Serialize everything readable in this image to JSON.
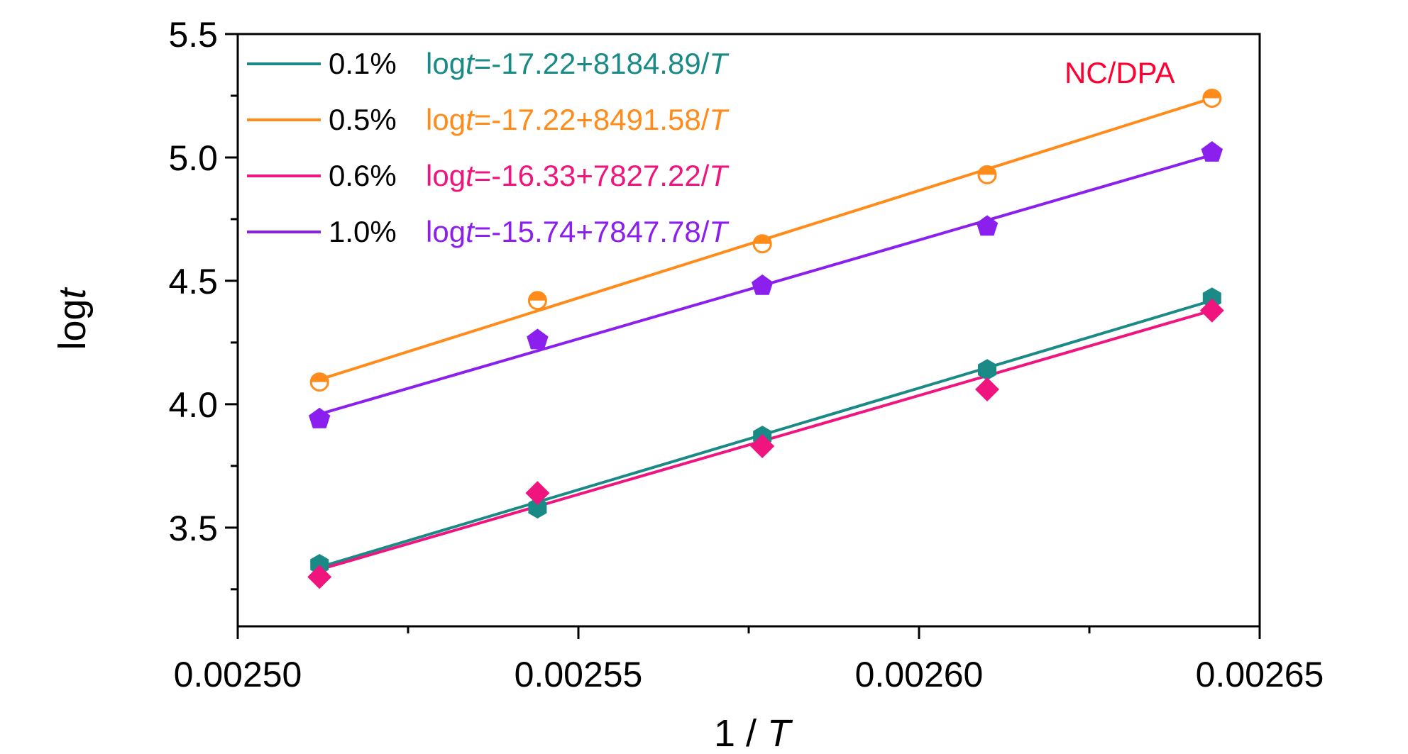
{
  "chart_data": {
    "type": "scatter",
    "xlabel": "1 / T",
    "ylabel": "logt",
    "xlim": [
      0.0025,
      0.00265
    ],
    "ylim": [
      3.1,
      5.5
    ],
    "x_ticks": [
      0.0025,
      0.00255,
      0.0026,
      0.00265
    ],
    "x_tick_labels": [
      "0.00250",
      "0.00255",
      "0.00260",
      "0.00265"
    ],
    "y_ticks": [
      3.5,
      4.0,
      4.5,
      5.0,
      5.5
    ],
    "y_tick_labels": [
      "3.5",
      "4.0",
      "4.5",
      "5.0",
      "5.5"
    ],
    "annotation": {
      "text": "NC/DPA",
      "color": "#ff0033"
    },
    "series": [
      {
        "name": "0.1%",
        "equation": "logt=-17.22+8184.89/T",
        "color": "#1a8a86",
        "marker": "hexagon",
        "x": [
          0.002512,
          0.002544,
          0.002577,
          0.00261,
          0.002643
        ],
        "y": [
          3.35,
          3.58,
          3.87,
          4.14,
          4.43
        ],
        "fit": [
          [
            0.002512,
            3.34
          ],
          [
            0.002643,
            4.42
          ]
        ]
      },
      {
        "name": "0.5%",
        "equation": "logt=-17.22+8491.58/T",
        "color": "#ff8c1a",
        "marker": "half-circle",
        "x": [
          0.002512,
          0.002544,
          0.002577,
          0.00261,
          0.002643
        ],
        "y": [
          4.09,
          4.42,
          4.65,
          4.93,
          5.24
        ],
        "fit": [
          [
            0.002512,
            4.1
          ],
          [
            0.002643,
            5.24
          ]
        ]
      },
      {
        "name": "0.6%",
        "equation": "logt=-16.33+7827.22/T",
        "color": "#f0147e",
        "marker": "diamond",
        "x": [
          0.002512,
          0.002544,
          0.002577,
          0.00261,
          0.002643
        ],
        "y": [
          3.3,
          3.64,
          3.83,
          4.06,
          4.38
        ],
        "fit": [
          [
            0.002512,
            3.33
          ],
          [
            0.002643,
            4.38
          ]
        ]
      },
      {
        "name": "1.0%",
        "equation": "logt=-15.74+7847.78/T",
        "color": "#8a1fee",
        "marker": "pentagon",
        "x": [
          0.002512,
          0.002544,
          0.002577,
          0.00261,
          0.002643
        ],
        "y": [
          3.94,
          4.26,
          4.48,
          4.72,
          5.02
        ],
        "fit": [
          [
            0.002512,
            3.96
          ],
          [
            0.002643,
            5.01
          ]
        ]
      }
    ]
  }
}
